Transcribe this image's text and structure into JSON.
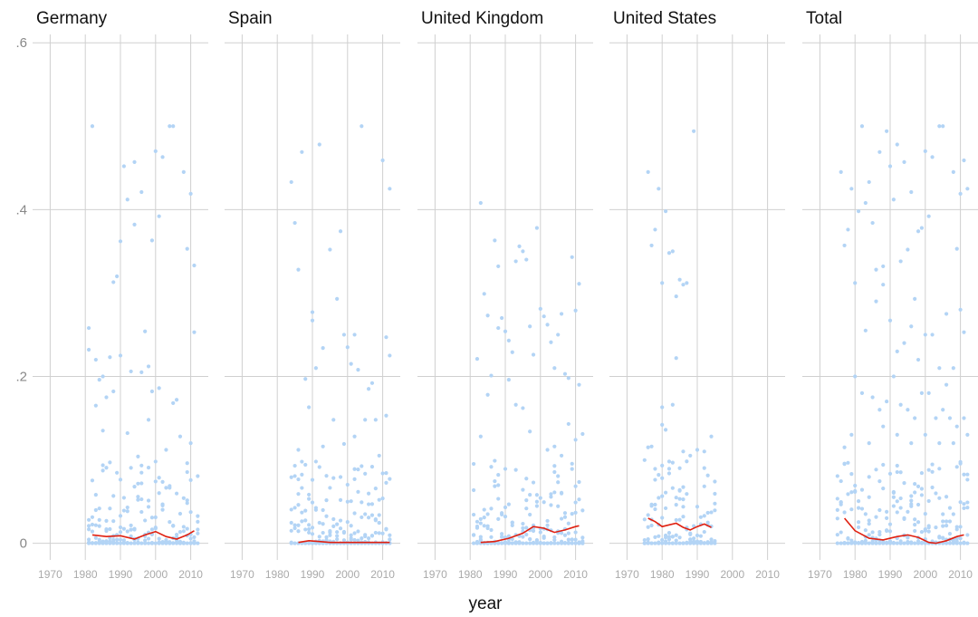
{
  "chart_data": {
    "type": "scatter",
    "xlabel": "year",
    "ylabel": "",
    "xlim": [
      1965,
      2015
    ],
    "ylim": [
      -0.02,
      0.61
    ],
    "x_ticks": [
      1970,
      1980,
      1990,
      2000,
      2010
    ],
    "y_ticks": [
      {
        "value": 0,
        "label": "0"
      },
      {
        "value": 0.2,
        "label": ".2"
      },
      {
        "value": 0.4,
        "label": ".4"
      },
      {
        "value": 0.6,
        "label": ".6"
      }
    ],
    "grid": true,
    "point_color": "#b3d4f5",
    "smooth_color": "#e02010",
    "facets": [
      {
        "title": "Germany",
        "x_range": [
          1981,
          2012
        ],
        "points": [
          [
            1982,
            0.5
          ],
          [
            1981,
            0.258
          ],
          [
            1981,
            0.232
          ],
          [
            1983,
            0.22
          ],
          [
            1984,
            0.196
          ],
          [
            1985,
            0.2
          ],
          [
            1987,
            0.223
          ],
          [
            1988,
            0.313
          ],
          [
            1989,
            0.32
          ],
          [
            1990,
            0.362
          ],
          [
            1991,
            0.452
          ],
          [
            1992,
            0.412
          ],
          [
            1993,
            0.206
          ],
          [
            1994,
            0.457
          ],
          [
            1994,
            0.382
          ],
          [
            1996,
            0.421
          ],
          [
            1996,
            0.205
          ],
          [
            1997,
            0.254
          ],
          [
            1998,
            0.212
          ],
          [
            1999,
            0.363
          ],
          [
            1999,
            0.182
          ],
          [
            2000,
            0.47
          ],
          [
            2001,
            0.392
          ],
          [
            2001,
            0.186
          ],
          [
            2002,
            0.463
          ],
          [
            2004,
            0.5
          ],
          [
            2005,
            0.5
          ],
          [
            2005,
            0.168
          ],
          [
            2006,
            0.172
          ],
          [
            2008,
            0.445
          ],
          [
            2009,
            0.353
          ],
          [
            2010,
            0.419
          ],
          [
            2011,
            0.333
          ],
          [
            2011,
            0.253
          ],
          [
            1990,
            0.225
          ],
          [
            1988,
            0.182
          ],
          [
            1985,
            0.135
          ],
          [
            1992,
            0.132
          ],
          [
            1998,
            0.148
          ],
          [
            2003,
            0.112
          ],
          [
            2007,
            0.128
          ],
          [
            2010,
            0.12
          ],
          [
            1983,
            0.165
          ],
          [
            1986,
            0.175
          ],
          [
            1995,
            0.104
          ],
          [
            2009,
            0.096
          ]
        ],
        "smooth": [
          [
            1982,
            0.01
          ],
          [
            1986,
            0.008
          ],
          [
            1990,
            0.009
          ],
          [
            1994,
            0.005
          ],
          [
            1997,
            0.01
          ],
          [
            2000,
            0.014
          ],
          [
            2003,
            0.008
          ],
          [
            2006,
            0.005
          ],
          [
            2009,
            0.01
          ],
          [
            2011,
            0.015
          ]
        ]
      },
      {
        "title": "Spain",
        "x_range": [
          1984,
          2012
        ],
        "points": [
          [
            1984,
            0.433
          ],
          [
            1985,
            0.384
          ],
          [
            1986,
            0.328
          ],
          [
            1987,
            0.469
          ],
          [
            1990,
            0.267
          ],
          [
            1990,
            0.277
          ],
          [
            1991,
            0.21
          ],
          [
            1992,
            0.478
          ],
          [
            1993,
            0.234
          ],
          [
            1995,
            0.352
          ],
          [
            1997,
            0.293
          ],
          [
            1998,
            0.374
          ],
          [
            1999,
            0.25
          ],
          [
            2000,
            0.235
          ],
          [
            2001,
            0.215
          ],
          [
            2002,
            0.25
          ],
          [
            2003,
            0.208
          ],
          [
            2004,
            0.5
          ],
          [
            2006,
            0.185
          ],
          [
            2007,
            0.192
          ],
          [
            2010,
            0.459
          ],
          [
            2011,
            0.247
          ],
          [
            2012,
            0.425
          ],
          [
            2012,
            0.225
          ],
          [
            1988,
            0.197
          ],
          [
            1989,
            0.163
          ],
          [
            1993,
            0.116
          ],
          [
            1996,
            0.148
          ],
          [
            2005,
            0.148
          ],
          [
            2008,
            0.148
          ],
          [
            2011,
            0.153
          ],
          [
            1999,
            0.119
          ],
          [
            2002,
            0.128
          ],
          [
            2009,
            0.105
          ],
          [
            1986,
            0.112
          ]
        ],
        "smooth": [
          [
            1986,
            0.001
          ],
          [
            1989,
            0.003
          ],
          [
            1992,
            0.002
          ],
          [
            1995,
            0.001
          ],
          [
            1998,
            0.001
          ],
          [
            2002,
            0.001
          ],
          [
            2006,
            0.001
          ],
          [
            2010,
            0.001
          ],
          [
            2012,
            0.001
          ]
        ]
      },
      {
        "title": "United Kingdom",
        "x_range": [
          1981,
          2012
        ],
        "points": [
          [
            1983,
            0.408
          ],
          [
            1984,
            0.299
          ],
          [
            1985,
            0.273
          ],
          [
            1987,
            0.363
          ],
          [
            1988,
            0.332
          ],
          [
            1988,
            0.258
          ],
          [
            1989,
            0.27
          ],
          [
            1990,
            0.254
          ],
          [
            1991,
            0.243
          ],
          [
            1992,
            0.229
          ],
          [
            1993,
            0.338
          ],
          [
            1994,
            0.356
          ],
          [
            1995,
            0.35
          ],
          [
            1996,
            0.34
          ],
          [
            1997,
            0.26
          ],
          [
            1998,
            0.226
          ],
          [
            1999,
            0.378
          ],
          [
            2000,
            0.281
          ],
          [
            2001,
            0.272
          ],
          [
            2002,
            0.262
          ],
          [
            2003,
            0.241
          ],
          [
            2004,
            0.21
          ],
          [
            2005,
            0.25
          ],
          [
            2006,
            0.275
          ],
          [
            2007,
            0.203
          ],
          [
            2008,
            0.198
          ],
          [
            2009,
            0.343
          ],
          [
            2010,
            0.279
          ],
          [
            2011,
            0.311
          ],
          [
            2011,
            0.19
          ],
          [
            1982,
            0.221
          ],
          [
            1983,
            0.128
          ],
          [
            1985,
            0.178
          ],
          [
            1986,
            0.201
          ],
          [
            1991,
            0.196
          ],
          [
            1993,
            0.166
          ],
          [
            1995,
            0.162
          ],
          [
            1997,
            0.134
          ],
          [
            2002,
            0.112
          ],
          [
            2004,
            0.116
          ],
          [
            2006,
            0.105
          ],
          [
            2008,
            0.143
          ],
          [
            2010,
            0.124
          ],
          [
            2012,
            0.131
          ]
        ],
        "smooth": [
          [
            1983,
            0.001
          ],
          [
            1987,
            0.002
          ],
          [
            1991,
            0.006
          ],
          [
            1995,
            0.012
          ],
          [
            1998,
            0.02
          ],
          [
            2001,
            0.018
          ],
          [
            2004,
            0.013
          ],
          [
            2007,
            0.016
          ],
          [
            2010,
            0.02
          ],
          [
            2011,
            0.021
          ]
        ]
      },
      {
        "title": "United States",
        "x_range": [
          1975,
          1995
        ],
        "points": [
          [
            1976,
            0.445
          ],
          [
            1977,
            0.357
          ],
          [
            1978,
            0.376
          ],
          [
            1979,
            0.425
          ],
          [
            1980,
            0.312
          ],
          [
            1981,
            0.398
          ],
          [
            1982,
            0.348
          ],
          [
            1983,
            0.35
          ],
          [
            1984,
            0.296
          ],
          [
            1984,
            0.222
          ],
          [
            1985,
            0.316
          ],
          [
            1986,
            0.31
          ],
          [
            1987,
            0.312
          ],
          [
            1989,
            0.494
          ],
          [
            1983,
            0.166
          ],
          [
            1980,
            0.163
          ],
          [
            1980,
            0.142
          ],
          [
            1981,
            0.136
          ],
          [
            1976,
            0.115
          ],
          [
            1977,
            0.116
          ],
          [
            1986,
            0.11
          ],
          [
            1988,
            0.105
          ],
          [
            1990,
            0.112
          ],
          [
            1992,
            0.11
          ],
          [
            1994,
            0.128
          ],
          [
            1979,
            0.082
          ],
          [
            1982,
            0.098
          ],
          [
            1985,
            0.09
          ]
        ],
        "smooth": [
          [
            1976,
            0.03
          ],
          [
            1978,
            0.026
          ],
          [
            1980,
            0.02
          ],
          [
            1982,
            0.022
          ],
          [
            1984,
            0.024
          ],
          [
            1986,
            0.019
          ],
          [
            1988,
            0.016
          ],
          [
            1990,
            0.02
          ],
          [
            1992,
            0.023
          ],
          [
            1994,
            0.019
          ]
        ]
      },
      {
        "title": "Total",
        "x_range": [
          1975,
          2012
        ],
        "points": [
          [
            1976,
            0.445
          ],
          [
            1977,
            0.357
          ],
          [
            1978,
            0.376
          ],
          [
            1979,
            0.425
          ],
          [
            1980,
            0.312
          ],
          [
            1981,
            0.398
          ],
          [
            1982,
            0.5
          ],
          [
            1983,
            0.408
          ],
          [
            1984,
            0.433
          ],
          [
            1985,
            0.384
          ],
          [
            1986,
            0.328
          ],
          [
            1987,
            0.469
          ],
          [
            1988,
            0.332
          ],
          [
            1989,
            0.494
          ],
          [
            1990,
            0.452
          ],
          [
            1991,
            0.412
          ],
          [
            1992,
            0.478
          ],
          [
            1993,
            0.338
          ],
          [
            1994,
            0.457
          ],
          [
            1995,
            0.352
          ],
          [
            1996,
            0.421
          ],
          [
            1997,
            0.293
          ],
          [
            1998,
            0.374
          ],
          [
            1999,
            0.378
          ],
          [
            2000,
            0.47
          ],
          [
            2001,
            0.392
          ],
          [
            2002,
            0.463
          ],
          [
            2004,
            0.5
          ],
          [
            2005,
            0.5
          ],
          [
            2006,
            0.275
          ],
          [
            2008,
            0.445
          ],
          [
            2009,
            0.353
          ],
          [
            2010,
            0.419
          ],
          [
            2011,
            0.459
          ],
          [
            2012,
            0.425
          ],
          [
            1983,
            0.255
          ],
          [
            1986,
            0.29
          ],
          [
            1988,
            0.31
          ],
          [
            1990,
            0.267
          ],
          [
            1992,
            0.23
          ],
          [
            1994,
            0.24
          ],
          [
            1996,
            0.26
          ],
          [
            1998,
            0.22
          ],
          [
            2000,
            0.25
          ],
          [
            2002,
            0.25
          ],
          [
            2004,
            0.21
          ],
          [
            2006,
            0.19
          ],
          [
            2008,
            0.21
          ],
          [
            2010,
            0.28
          ],
          [
            2011,
            0.253
          ],
          [
            1980,
            0.2
          ],
          [
            1982,
            0.18
          ],
          [
            1985,
            0.175
          ],
          [
            1987,
            0.16
          ],
          [
            1989,
            0.17
          ],
          [
            1991,
            0.2
          ],
          [
            1993,
            0.166
          ],
          [
            1995,
            0.16
          ],
          [
            1997,
            0.15
          ],
          [
            1999,
            0.18
          ],
          [
            2001,
            0.18
          ],
          [
            2003,
            0.15
          ],
          [
            2005,
            0.16
          ],
          [
            2007,
            0.15
          ],
          [
            2009,
            0.14
          ],
          [
            2011,
            0.15
          ],
          [
            1977,
            0.115
          ],
          [
            1979,
            0.13
          ],
          [
            1984,
            0.12
          ],
          [
            1988,
            0.14
          ],
          [
            1992,
            0.13
          ],
          [
            1996,
            0.12
          ],
          [
            2000,
            0.13
          ],
          [
            2004,
            0.12
          ],
          [
            2008,
            0.12
          ],
          [
            2012,
            0.13
          ]
        ],
        "smooth": [
          [
            1977,
            0.03
          ],
          [
            1980,
            0.015
          ],
          [
            1984,
            0.006
          ],
          [
            1988,
            0.004
          ],
          [
            1992,
            0.008
          ],
          [
            1995,
            0.01
          ],
          [
            1998,
            0.007
          ],
          [
            2001,
            0.001
          ],
          [
            2003,
            0.0
          ],
          [
            2006,
            0.003
          ],
          [
            2009,
            0.008
          ],
          [
            2011,
            0.01
          ]
        ]
      }
    ]
  }
}
